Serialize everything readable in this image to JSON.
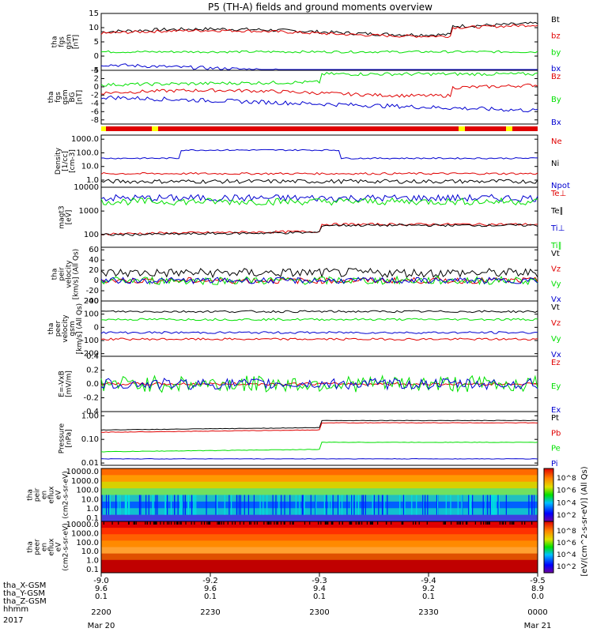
{
  "title": "P5 (TH-A) fields and ground moments overview",
  "colors": {
    "black": "#000000",
    "red": "#e00000",
    "green": "#00e000",
    "blue": "#0000d0",
    "yellow": "#ffff00"
  },
  "ephemeris": {
    "labels": [
      "tha_X-GSM",
      "tha_Y-GSM",
      "tha_Z-GSM",
      "hhmm",
      "2017"
    ],
    "columns": [
      {
        "x": "-9.0",
        "y": "9.6",
        "z": "0.1",
        "hhmm": "2200",
        "date": "Mar 20"
      },
      {
        "x": "-9.2",
        "y": "9.6",
        "z": "0.1",
        "hhmm": "2230",
        "date": ""
      },
      {
        "x": "-9.3",
        "y": "9.4",
        "z": "0.1",
        "hhmm": "2300",
        "date": ""
      },
      {
        "x": "-9.4",
        "y": "9.2",
        "z": "0.1",
        "hhmm": "2330",
        "date": ""
      },
      {
        "x": "-9.5",
        "y": "8.9",
        "z": "0.0",
        "hhmm": "0000",
        "date": "Mar 21"
      }
    ]
  },
  "colorbar": {
    "label": "[eV/(cm^2-s-sr-eV)] (All Qs)",
    "upper_ticks": [
      "10^8",
      "10^6",
      "10^4",
      "10^2"
    ],
    "lower_ticks": [
      "10^8",
      "10^6",
      "10^4",
      "10^2"
    ]
  },
  "chart_data": [
    {
      "type": "line",
      "id": "fgs",
      "ylabel": [
        "tha",
        "fgs",
        "gsm",
        "[nT]"
      ],
      "ylim": [
        -5,
        15
      ],
      "yticks": [
        "15",
        "10",
        "5",
        "0",
        "-5"
      ],
      "ytick_values": [
        15,
        10,
        5,
        0,
        -5
      ],
      "log": false,
      "series": [
        {
          "name": "Bt",
          "color": "#000000",
          "level": 8.5,
          "jitter": 0.6,
          "shape": "swell"
        },
        {
          "name": "bz",
          "color": "#e00000",
          "level": 8.0,
          "jitter": 0.5,
          "shape": "swell"
        },
        {
          "name": "by",
          "color": "#00e000",
          "level": 1.5,
          "jitter": 0.4,
          "shape": "flat"
        },
        {
          "name": "bx",
          "color": "#0000d0",
          "level": -3.0,
          "jitter": 0.6,
          "shape": "drop"
        }
      ]
    },
    {
      "type": "line",
      "id": "fgs-gse",
      "ylabel": [
        "tha",
        "fgs",
        "gsm",
        "BG",
        "[nT]"
      ],
      "ylim": [
        -9,
        4
      ],
      "yticks": [
        "4",
        "2",
        "0",
        "-2",
        "-4",
        "-6",
        "-8"
      ],
      "ytick_values": [
        4,
        2,
        0,
        -2,
        -4,
        -6,
        -8
      ],
      "log": false,
      "series": [
        {
          "name": "Bz",
          "color": "#e00000",
          "level": -1.5,
          "jitter": 0.4,
          "shape": "swell"
        },
        {
          "name": "By",
          "color": "#00e000",
          "level": 0.5,
          "jitter": 0.4,
          "shape": "rise"
        },
        {
          "name": "Bx",
          "color": "#0000d0",
          "level": -2.5,
          "jitter": 0.5,
          "shape": "drop"
        }
      ]
    },
    {
      "type": "line",
      "id": "density",
      "ylabel": [
        "Density",
        "[1/cc]",
        "[cm-3]"
      ],
      "ylim": [
        0.3,
        2000
      ],
      "yticks": [
        "1000.0",
        "100.0",
        "10.0",
        "1.0"
      ],
      "ytick_values": [
        1000,
        100,
        10,
        1
      ],
      "log": true,
      "series": [
        {
          "name": "Ne",
          "color": "#e00000",
          "level": 3.0,
          "jitter": 0.15,
          "shape": "flat"
        },
        {
          "name": "Ni",
          "color": "#000000",
          "level": 0.8,
          "jitter": 0.3,
          "shape": "flat"
        },
        {
          "name": "Npot",
          "color": "#0000d0",
          "level": 40,
          "jitter": 0.1,
          "shape": "bump"
        }
      ]
    },
    {
      "type": "line",
      "id": "temperature",
      "ylabel": [
        "magt3",
        "[eV]"
      ],
      "ylim": [
        30,
        10000
      ],
      "yticks": [
        "10000",
        "1000",
        "100"
      ],
      "ytick_values": [
        10000,
        1000,
        100
      ],
      "log": true,
      "series": [
        {
          "name": "Te⊥",
          "color": "#e00000",
          "level": 110,
          "jitter": 0.1,
          "shape": "rise"
        },
        {
          "name": "Te∥",
          "color": "#000000",
          "level": 100,
          "jitter": 0.1,
          "shape": "rise"
        },
        {
          "name": "Ti⊥",
          "color": "#0000d0",
          "level": 3500,
          "jitter": 0.3,
          "shape": "flat"
        },
        {
          "name": "Ti∥",
          "color": "#00e000",
          "level": 2500,
          "jitter": 0.3,
          "shape": "flat"
        }
      ]
    },
    {
      "type": "line",
      "id": "esa-velocity",
      "ylabel": [
        "tha",
        "peir",
        "velocity",
        "[km/s] (All Qs)"
      ],
      "ylim": [
        -40,
        65
      ],
      "yticks": [
        "60",
        "40",
        "20",
        "0",
        "-20",
        "-40"
      ],
      "ytick_values": [
        60,
        40,
        20,
        0,
        -20,
        -40
      ],
      "log": false,
      "series": [
        {
          "name": "Vt",
          "color": "#000000",
          "level": 15,
          "jitter": 9,
          "shape": "flat"
        },
        {
          "name": "Vz",
          "color": "#e00000",
          "level": 0,
          "jitter": 6,
          "shape": "flat"
        },
        {
          "name": "Vy",
          "color": "#00e000",
          "level": 0,
          "jitter": 8,
          "shape": "flat"
        },
        {
          "name": "Vx",
          "color": "#0000d0",
          "level": 0,
          "jitter": 6,
          "shape": "flat"
        }
      ]
    },
    {
      "type": "line",
      "id": "ion-velocity",
      "ylabel": [
        "tha",
        "peer",
        "velocity",
        "gsm",
        "[km/s] (All Qs)"
      ],
      "ylim": [
        -220,
        200
      ],
      "yticks": [
        "200",
        "100",
        "0",
        "-100",
        "-200"
      ],
      "ytick_values": [
        200,
        100,
        0,
        -100,
        -200
      ],
      "log": false,
      "series": [
        {
          "name": "Vt",
          "color": "#000000",
          "level": 120,
          "jitter": 8,
          "shape": "flat"
        },
        {
          "name": "Vz",
          "color": "#e00000",
          "level": -90,
          "jitter": 8,
          "shape": "flat"
        },
        {
          "name": "Vy",
          "color": "#00e000",
          "level": 60,
          "jitter": 8,
          "shape": "flat"
        },
        {
          "name": "Vx",
          "color": "#0000d0",
          "level": -40,
          "jitter": 8,
          "shape": "flat"
        }
      ]
    },
    {
      "type": "line",
      "id": "efield",
      "ylabel": [
        "E=-VxB",
        "[mV/m]"
      ],
      "ylim": [
        -0.4,
        0.4
      ],
      "yticks": [
        "0.4",
        "0.2",
        "0.0",
        "-0.2",
        "-0.4"
      ],
      "ytick_values": [
        0.4,
        0.2,
        0,
        -0.2,
        -0.4
      ],
      "log": false,
      "series": [
        {
          "name": "Ez",
          "color": "#e00000",
          "level": 0,
          "jitter": 0.02,
          "shape": "flat"
        },
        {
          "name": "Ey",
          "color": "#00e000",
          "level": 0,
          "jitter": 0.12,
          "shape": "flat"
        },
        {
          "name": "Ex",
          "color": "#0000d0",
          "level": 0,
          "jitter": 0.08,
          "shape": "flat"
        }
      ]
    },
    {
      "type": "line",
      "id": "pressure",
      "ylabel": [
        "Pressure",
        "[nPa]"
      ],
      "ylim": [
        0.008,
        1.5
      ],
      "yticks": [
        "1.00",
        "0.10",
        "0.01"
      ],
      "ytick_values": [
        1,
        0.1,
        0.01
      ],
      "log": true,
      "series": [
        {
          "name": "Pt",
          "color": "#000000",
          "level": 0.25,
          "jitter": 0.02,
          "shape": "rise"
        },
        {
          "name": "Pb",
          "color": "#e00000",
          "level": 0.2,
          "jitter": 0.02,
          "shape": "rise"
        },
        {
          "name": "Pe",
          "color": "#00e000",
          "level": 0.03,
          "jitter": 0.02,
          "shape": "rise"
        },
        {
          "name": "Pi",
          "color": "#0000d0",
          "level": 0.015,
          "jitter": 0.02,
          "shape": "flat"
        }
      ]
    },
    {
      "type": "heatmap",
      "id": "ion-spectrogram",
      "ylabel": [
        "tha",
        "peir",
        "en",
        "eflux",
        "eV",
        "(cm2-s-sr-eV)"
      ],
      "yticks": [
        "10000.0",
        "1000.0",
        "100.0",
        "10.0",
        "1.0",
        "0.1"
      ]
    },
    {
      "type": "heatmap",
      "id": "electron-spectrogram",
      "ylabel": [
        "tha",
        "peer",
        "en",
        "eflux",
        "eV",
        "(cm2-s-sr-eV)"
      ],
      "yticks": [
        "10000.0",
        "1000.0",
        "100.0",
        "10.0",
        "1.0",
        "0.1"
      ]
    }
  ]
}
